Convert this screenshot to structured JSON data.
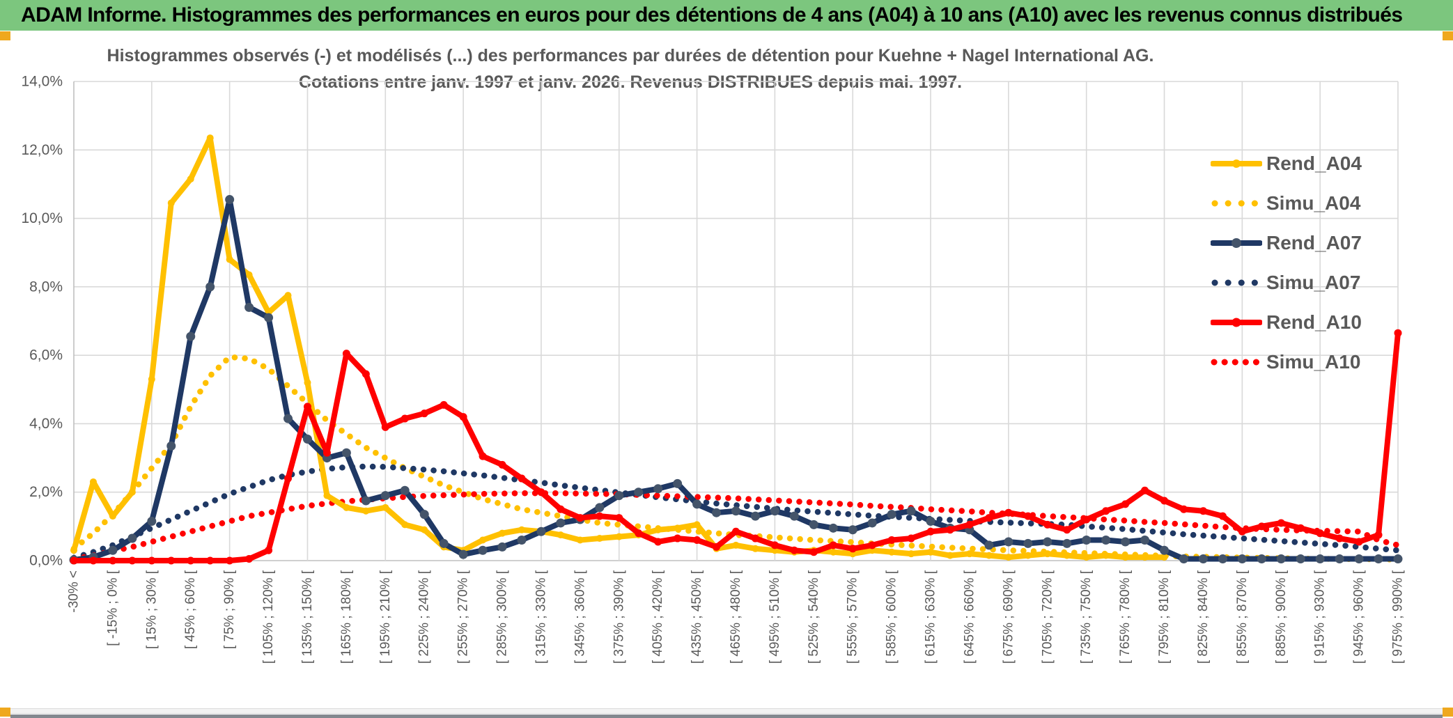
{
  "header": {
    "title": "ADAM Informe. Histogrammes des performances en euros pour des détentions de 4 ans (A04) à 10 ans (A10) avec les revenus connus distribués",
    "bg_color": "#7CC67E"
  },
  "chart": {
    "title_line1": "Histogrammes observés (-) et modélisés (...) des performances par durées de détention pour Kuehne + Nagel International AG.",
    "title_line2": "Cotations entre janv. 1997 et janv. 2026. Revenus DISTRIBUES depuis mai. 1997."
  },
  "chart_data": {
    "type": "line",
    "title": "Histogrammes observés (-) et modélisés (...) des performances par durées de détention pour Kuehne + Nagel International AG. Cotations entre janv. 1997 et janv. 2026. Revenus DISTRIBUES depuis mai. 1997.",
    "xlabel": "",
    "ylabel": "",
    "ylim": [
      0,
      14
    ],
    "grid": true,
    "legend_position": "right-inside",
    "y_ticks": [
      "0,0%",
      "2,0%",
      "4,0%",
      "6,0%",
      "8,0%",
      "10,0%",
      "12,0%",
      "14,0%"
    ],
    "bins_total": 69,
    "bin_width_pct": 15,
    "x_tick_every_bins": 2,
    "x_tick_labels": [
      "-30% <",
      "[ -15% ; 0% [",
      "[ 15% ; 30% [",
      "[ 45% ; 60% [",
      "[ 75% ; 90% [",
      "[ 105% ; 120% [",
      "[ 135% ; 150% [",
      "[ 165% ; 180% [",
      "[ 195% ; 210% [",
      "[ 225% ; 240% [",
      "[ 255% ; 270% [",
      "[ 285% ; 300% [",
      "[ 315% ; 330% [",
      "[ 345% ; 360% [",
      "[ 375% ; 390% [",
      "[ 405% ; 420% [",
      "[ 435% ; 450% [",
      "[ 465% ; 480% [",
      "[ 495% ; 510% [",
      "[ 525% ; 540% [",
      "[ 555% ; 570% [",
      "[ 585% ; 600% [",
      "[ 615% ; 630% [",
      "[ 645% ; 660% [",
      "[ 675% ; 690% [",
      "[ 705% ; 720% [",
      "[ 735% ; 750% [",
      "[ 765% ; 780% [",
      "[ 795% ; 810% [",
      "[ 825% ; 840% [",
      "[ 855% ; 870% [",
      "[ 885% ; 900% [",
      "[ 915% ; 930% [",
      "[ 945% ; 960% [",
      "[ 975% ; 990% ["
    ],
    "series": [
      {
        "name": "Rend_A04",
        "style": "solid",
        "color": "#FFC000",
        "marker_color": "#FFC000",
        "marker_radius": 5,
        "values": [
          0.3,
          2.3,
          1.3,
          2.0,
          5.3,
          10.45,
          11.15,
          12.35,
          8.8,
          8.35,
          7.25,
          7.75,
          5.2,
          1.9,
          1.55,
          1.45,
          1.55,
          1.05,
          0.9,
          0.4,
          0.3,
          0.6,
          0.8,
          0.9,
          0.85,
          0.75,
          0.6,
          0.65,
          0.7,
          0.75,
          0.9,
          0.95,
          1.05,
          0.35,
          0.45,
          0.35,
          0.3,
          0.25,
          0.3,
          0.25,
          0.2,
          0.3,
          0.25,
          0.2,
          0.25,
          0.15,
          0.2,
          0.15,
          0.1,
          0.15,
          0.2,
          0.15,
          0.1,
          0.15,
          0.1,
          0.1,
          0.1,
          null,
          null,
          null,
          null,
          null,
          null,
          null,
          null,
          null,
          null,
          null,
          null
        ]
      },
      {
        "name": "Simu_A04",
        "style": "dotted",
        "color": "#FFC000",
        "marker_color": "#FFC000",
        "marker_radius": 0,
        "values": [
          0.35,
          0.8,
          1.35,
          2.0,
          2.7,
          3.4,
          4.5,
          5.4,
          5.95,
          5.9,
          5.6,
          5.1,
          4.6,
          4.1,
          3.7,
          3.3,
          3.0,
          2.7,
          2.45,
          2.2,
          2.0,
          1.8,
          1.65,
          1.5,
          1.4,
          1.3,
          1.2,
          1.1,
          1.05,
          1.0,
          0.95,
          0.9,
          0.85,
          0.8,
          0.75,
          0.72,
          0.68,
          0.64,
          0.6,
          0.57,
          0.54,
          0.5,
          0.47,
          0.44,
          0.41,
          0.38,
          0.35,
          0.33,
          0.3,
          0.28,
          0.26,
          0.24,
          0.22,
          0.2,
          0.18,
          0.16,
          0.14,
          0.12,
          0.11,
          0.1,
          0.09,
          0.08,
          0.07,
          0.06,
          0.05,
          0.05,
          0.04,
          0.04,
          0.03
        ]
      },
      {
        "name": "Rend_A07",
        "style": "solid",
        "color": "#1F3864",
        "marker_color": "#44546A",
        "marker_radius": 6.5,
        "values": [
          0.02,
          0.1,
          0.3,
          0.65,
          1.15,
          3.35,
          6.55,
          8.0,
          10.55,
          7.4,
          7.1,
          4.15,
          3.55,
          3.0,
          3.15,
          1.75,
          1.9,
          2.05,
          1.35,
          0.5,
          0.18,
          0.3,
          0.4,
          0.6,
          0.85,
          1.1,
          1.2,
          1.55,
          1.9,
          2.0,
          2.1,
          2.25,
          1.65,
          1.4,
          1.45,
          1.3,
          1.45,
          1.3,
          1.05,
          0.95,
          0.9,
          1.1,
          1.35,
          1.45,
          1.15,
          0.95,
          0.9,
          0.45,
          0.55,
          0.5,
          0.55,
          0.5,
          0.6,
          0.6,
          0.55,
          0.6,
          0.3,
          0.05,
          0.05,
          0.05,
          0.05,
          0.05,
          0.05,
          0.05,
          0.05,
          0.05,
          0.05,
          0.05,
          0.05
        ]
      },
      {
        "name": "Simu_A07",
        "style": "dotted",
        "color": "#1F3864",
        "marker_color": "#1F3864",
        "marker_radius": 0,
        "values": [
          0.08,
          0.25,
          0.45,
          0.7,
          0.95,
          1.2,
          1.45,
          1.7,
          1.95,
          2.15,
          2.35,
          2.5,
          2.6,
          2.68,
          2.73,
          2.75,
          2.74,
          2.7,
          2.66,
          2.61,
          2.55,
          2.49,
          2.42,
          2.35,
          2.28,
          2.2,
          2.13,
          2.06,
          1.99,
          1.92,
          1.85,
          1.79,
          1.73,
          1.67,
          1.62,
          1.57,
          1.52,
          1.47,
          1.43,
          1.39,
          1.35,
          1.31,
          1.28,
          1.25,
          1.22,
          1.19,
          1.16,
          1.13,
          1.11,
          1.09,
          1.07,
          1.05,
          1.0,
          0.96,
          0.92,
          0.87,
          0.82,
          0.77,
          0.73,
          0.69,
          0.65,
          0.61,
          0.57,
          0.53,
          0.49,
          0.45,
          0.4,
          0.35,
          0.3
        ]
      },
      {
        "name": "Rend_A10",
        "style": "solid",
        "color": "#FF0000",
        "marker_color": "#FF0000",
        "marker_radius": 5.5,
        "values": [
          0,
          0,
          0,
          0,
          0,
          0,
          0,
          0,
          0,
          0.05,
          0.3,
          2.4,
          4.5,
          3.15,
          6.05,
          5.45,
          3.9,
          4.15,
          4.3,
          4.55,
          4.2,
          3.05,
          2.8,
          2.4,
          2.0,
          1.5,
          1.25,
          1.3,
          1.25,
          0.8,
          0.55,
          0.65,
          0.6,
          0.4,
          0.85,
          0.65,
          0.45,
          0.3,
          0.25,
          0.45,
          0.35,
          0.45,
          0.6,
          0.65,
          0.85,
          0.9,
          1.05,
          1.25,
          1.4,
          1.3,
          1.05,
          0.9,
          1.2,
          1.45,
          1.65,
          2.05,
          1.75,
          1.5,
          1.45,
          1.3,
          0.85,
          1.0,
          1.1,
          0.95,
          0.8,
          0.65,
          0.55,
          0.75,
          6.65
        ]
      },
      {
        "name": "Simu_A10",
        "style": "dotted",
        "color": "#FF0000",
        "marker_color": "#FF0000",
        "marker_radius": 0,
        "values": [
          0.05,
          0.15,
          0.28,
          0.4,
          0.55,
          0.7,
          0.85,
          1.0,
          1.15,
          1.3,
          1.4,
          1.5,
          1.6,
          1.67,
          1.73,
          1.78,
          1.82,
          1.86,
          1.89,
          1.91,
          1.93,
          1.95,
          1.96,
          1.97,
          1.97,
          1.97,
          1.96,
          1.95,
          1.94,
          1.92,
          1.9,
          1.88,
          1.86,
          1.84,
          1.82,
          1.79,
          1.76,
          1.73,
          1.7,
          1.67,
          1.64,
          1.6,
          1.57,
          1.54,
          1.5,
          1.47,
          1.44,
          1.4,
          1.37,
          1.34,
          1.3,
          1.27,
          1.24,
          1.2,
          1.17,
          1.13,
          1.1,
          1.06,
          1.02,
          0.98,
          0.95,
          0.92,
          0.9,
          0.88,
          0.87,
          0.86,
          0.85,
          0.6,
          0.45
        ]
      }
    ]
  },
  "colors": {
    "header_green": "#7CC67E",
    "accent_gold": "#EFA81E",
    "grid": "#D9D9D9",
    "axis": "#BFBFBF",
    "text_grey": "#595959",
    "series_gold": "#FFC000",
    "series_navy": "#1F3864",
    "series_red": "#FF0000"
  }
}
